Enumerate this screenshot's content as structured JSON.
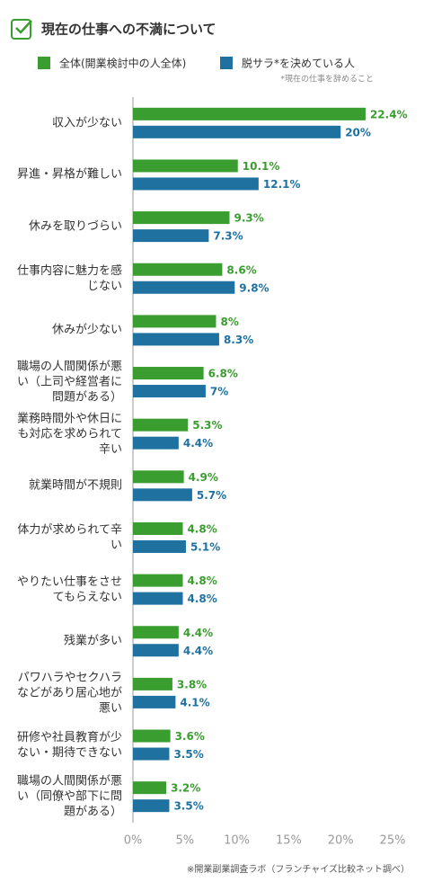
{
  "chart_data": {
    "type": "bar",
    "orientation": "horizontal",
    "title": "現在の仕事への不満について",
    "note": "*現在の仕事を辞めること",
    "source": "※開業副業調査ラボ（フランチャイズ比較ネット調べ）",
    "categories": [
      "収入が少ない",
      "昇進・昇格が難しい",
      "休みを取りづらい",
      "仕事内容に魅力を感じない",
      "休みが少ない",
      "職場の人間関係が悪い（上司や経営者に問題がある）",
      "業務時間外や休日にも対応を求められて辛い",
      "就業時間が不規則",
      "体力が求められて辛い",
      "やりたい仕事をさせてもらえない",
      "残業が多い",
      "パワハラやセクハラなどがあり居心地が悪い",
      "研修や社員教育が少ない・期待できない",
      "職場の人間関係が悪い（同僚や部下に問題がある）"
    ],
    "series": [
      {
        "name": "全体(開業検討中の人全体)",
        "color": "#3a9d2f",
        "values": [
          22.4,
          10.1,
          9.3,
          8.6,
          8,
          6.8,
          5.3,
          4.9,
          4.8,
          4.8,
          4.4,
          3.8,
          3.6,
          3.2
        ],
        "value_labels": [
          "22.4%",
          "10.1%",
          "9.3%",
          "8.6%",
          "8%",
          "6.8%",
          "5.3%",
          "4.9%",
          "4.8%",
          "4.8%",
          "4.4%",
          "3.8%",
          "3.6%",
          "3.2%"
        ]
      },
      {
        "name": "脱サラ*を決めている人",
        "color": "#1f72a0",
        "values": [
          20,
          12.1,
          7.3,
          9.8,
          8.3,
          7,
          4.4,
          5.7,
          5.1,
          4.8,
          4.4,
          4.1,
          3.5,
          3.5
        ],
        "value_labels": [
          "20%",
          "12.1%",
          "7.3%",
          "9.8%",
          "8.3%",
          "7%",
          "4.4%",
          "5.7%",
          "5.1%",
          "4.8%",
          "4.4%",
          "4.1%",
          "3.5%",
          "3.5%"
        ]
      }
    ],
    "xlim": [
      0,
      25
    ],
    "xticks": [
      {
        "value": 0,
        "label": "0%"
      },
      {
        "value": 5,
        "label": "5%"
      },
      {
        "value": 10,
        "label": "10%"
      },
      {
        "value": 15,
        "label": "15%"
      },
      {
        "value": 20,
        "label": "20%"
      },
      {
        "value": 25,
        "label": "25%"
      }
    ]
  }
}
